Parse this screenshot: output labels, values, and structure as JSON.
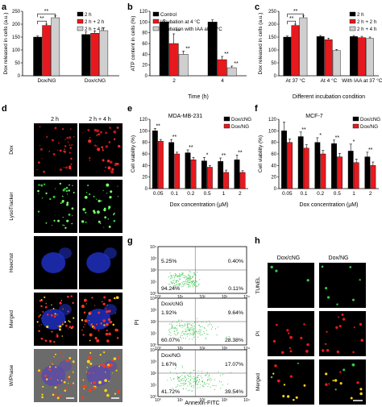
{
  "panels": {
    "a": {
      "letter": "a"
    },
    "b": {
      "letter": "b"
    },
    "c": {
      "letter": "c"
    },
    "d": {
      "letter": "d",
      "col_labels": [
        "2 h",
        "2 h + 4 h"
      ],
      "row_labels": [
        "Dox",
        "LysoTracker",
        "Hoechst",
        "Merged",
        "W/Phase"
      ]
    },
    "e": {
      "letter": "e"
    },
    "f": {
      "letter": "f"
    },
    "g": {
      "letter": "g"
    },
    "h": {
      "letter": "h",
      "col_labels": [
        "Dox/cNG",
        "Dox/NG"
      ],
      "row_labels": [
        "TUNEL",
        "PI",
        "Merged"
      ]
    }
  },
  "colors": {
    "black": "#000000",
    "red": "#e8191e",
    "gray": "#cfcfcf",
    "green": "#39c449"
  },
  "chart_data": [
    {
      "id": "a",
      "type": "bar",
      "title": "",
      "xlabel": "",
      "ylabel": "Dox released in cells (a.u.)",
      "ylim": [
        0,
        250
      ],
      "yticks": [
        0,
        50,
        100,
        150,
        200,
        250
      ],
      "categories": [
        "Dox/NG",
        "Dox/cNG"
      ],
      "series": [
        {
          "name": "2 h",
          "color": "#000000",
          "values": [
            150,
            160
          ]
        },
        {
          "name": "2 h + 2 h",
          "color": "#e8191e",
          "values": [
            195,
            165
          ]
        },
        {
          "name": "2 h + 4 h",
          "color": "#cfcfcf",
          "values": [
            225,
            175
          ]
        }
      ],
      "errors": [
        [
          4,
          10
        ],
        [
          5,
          9
        ],
        [
          7,
          11
        ]
      ],
      "annotations": [
        "**",
        "**"
      ],
      "legend": "top-left"
    },
    {
      "id": "b",
      "type": "bar",
      "title": "",
      "xlabel": "Time (h)",
      "ylabel": "ATP content in cells (%)",
      "ylim": [
        0,
        120
      ],
      "yticks": [
        0,
        20,
        40,
        60,
        80,
        100,
        120
      ],
      "categories": [
        "2",
        "4"
      ],
      "series": [
        {
          "name": "Control",
          "color": "#000000",
          "values": [
            100,
            100
          ]
        },
        {
          "name": "Incubation at 4 °C",
          "color": "#e8191e",
          "values": [
            60,
            30
          ]
        },
        {
          "name": "Incubation with IAA at 37 °C",
          "color": "#cfcfcf",
          "values": [
            40,
            15
          ]
        }
      ],
      "errors": [
        [
          4,
          4
        ],
        [
          18,
          6
        ],
        [
          6,
          3
        ]
      ],
      "annotations": [
        "**",
        "**",
        "**",
        "**"
      ],
      "legend": "top"
    },
    {
      "id": "c",
      "type": "bar",
      "title": "",
      "xlabel": "Different incubation condition",
      "ylabel": "Dox released in cells (a.u.)",
      "ylim": [
        0,
        250
      ],
      "yticks": [
        0,
        50,
        100,
        150,
        200,
        250
      ],
      "categories": [
        "At 37 °C",
        "At 4 °C",
        "With IAA at 37 °C"
      ],
      "series": [
        {
          "name": "2 h",
          "color": "#000000",
          "values": [
            150,
            152,
            152
          ]
        },
        {
          "name": "2 h + 2 h",
          "color": "#e8191e",
          "values": [
            195,
            140,
            148
          ]
        },
        {
          "name": "2 h + 4 h",
          "color": "#cfcfcf",
          "values": [
            225,
            98,
            145
          ]
        }
      ],
      "errors": [
        [
          4,
          4,
          4
        ],
        [
          5,
          6,
          5
        ],
        [
          7,
          4,
          5
        ]
      ],
      "annotations": [
        "**",
        "**"
      ],
      "legend": "top-right"
    },
    {
      "id": "e",
      "type": "bar",
      "title": "MDA-MB-231",
      "xlabel": "Dox concentration (μM)",
      "ylabel": "Cell viability (%)",
      "ylim": [
        0,
        120
      ],
      "yticks": [
        0,
        20,
        40,
        60,
        80,
        100,
        120
      ],
      "categories": [
        "0.05",
        "0.1",
        "0.2",
        "0.5",
        "1",
        "2"
      ],
      "series": [
        {
          "name": "Dox/cNG",
          "color": "#000000",
          "values": [
            100,
            80,
            62,
            48,
            47,
            50
          ]
        },
        {
          "name": "Dox/NG",
          "color": "#e8191e",
          "values": [
            82,
            60,
            50,
            37,
            28,
            28
          ]
        }
      ],
      "errors": [
        [
          4,
          5,
          5,
          6,
          6,
          8
        ],
        [
          3,
          3,
          4,
          3,
          4,
          3
        ]
      ],
      "annotations": [
        "**",
        "**",
        "**",
        "*",
        "**",
        "**"
      ],
      "legend": "top-right"
    },
    {
      "id": "f",
      "type": "bar",
      "title": "MCF-7",
      "xlabel": "Dox concentration (μM)",
      "ylabel": "Cell viability (%)",
      "ylim": [
        0,
        120
      ],
      "yticks": [
        0,
        20,
        40,
        60,
        80,
        100,
        120
      ],
      "categories": [
        "0.05",
        "0.1",
        "0.2",
        "0.5",
        "1",
        "2"
      ],
      "series": [
        {
          "name": "Dox/cNG",
          "color": "#000000",
          "values": [
            100,
            90,
            80,
            78,
            65,
            55
          ]
        },
        {
          "name": "Dox/NG",
          "color": "#e8191e",
          "values": [
            80,
            70,
            60,
            55,
            45,
            40
          ]
        }
      ],
      "errors": [
        [
          15,
          8,
          8,
          6,
          12,
          8
        ],
        [
          6,
          6,
          6,
          6,
          6,
          6
        ]
      ],
      "annotations": [
        "**",
        "*",
        "**",
        "*",
        "**"
      ],
      "legend": "top-right"
    },
    {
      "id": "g",
      "type": "scatter",
      "xlabel": "Annexin-FITC",
      "ylabel": "PI",
      "axis_ticks": [
        "10⁰",
        "10¹",
        "10²",
        "10³",
        "10⁴"
      ],
      "scale": "log",
      "quadrants": [
        {
          "label": "",
          "ul": "5.25%",
          "ur": "0.40%",
          "ll": "94.24%",
          "lr": "0.11%"
        },
        {
          "label": "Dox/cNG",
          "ul": "1.92%",
          "ur": "9.64%",
          "ll": "60.07%",
          "lr": "28.38%"
        },
        {
          "label": "Dox/NG",
          "ul": "1.67%",
          "ur": "17.07%",
          "ll": "41.72%",
          "lr": "39.54%"
        }
      ]
    }
  ]
}
